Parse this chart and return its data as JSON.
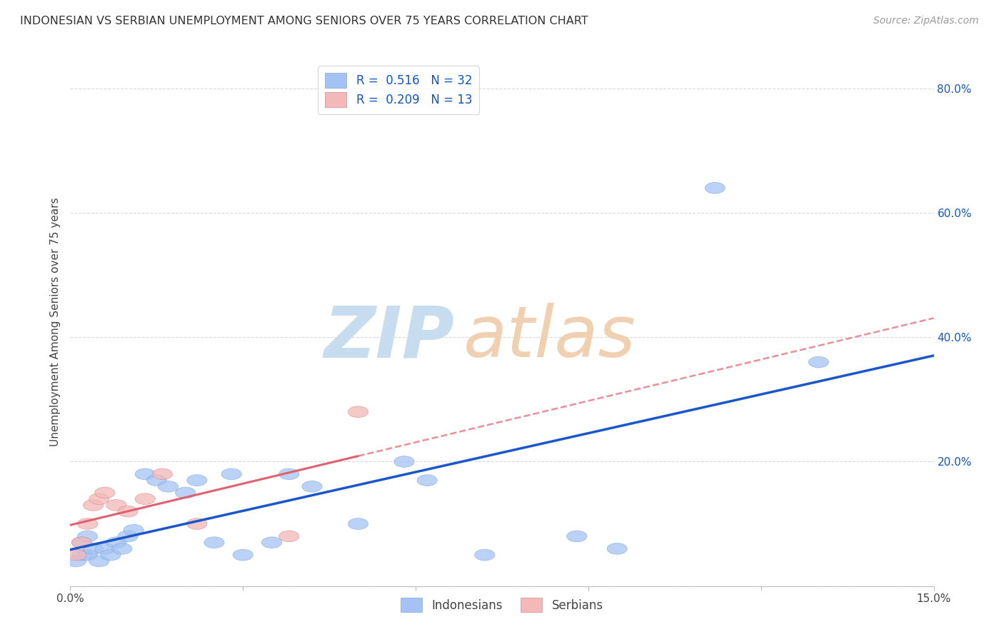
{
  "title": "INDONESIAN VS SERBIAN UNEMPLOYMENT AMONG SENIORS OVER 75 YEARS CORRELATION CHART",
  "source": "Source: ZipAtlas.com",
  "ylabel": "Unemployment Among Seniors over 75 years",
  "xlim": [
    0.0,
    0.15
  ],
  "ylim": [
    0.0,
    0.85
  ],
  "yticks": [
    0.0,
    0.2,
    0.4,
    0.6,
    0.8
  ],
  "ytick_labels": [
    "",
    "20.0%",
    "40.0%",
    "60.0%",
    "80.0%"
  ],
  "xticks": [
    0.0,
    0.03,
    0.06,
    0.09,
    0.12,
    0.15
  ],
  "xtick_labels": [
    "0.0%",
    "",
    "",
    "",
    "",
    "15.0%"
  ],
  "indonesian_R": 0.516,
  "indonesian_N": 32,
  "serbian_R": 0.209,
  "serbian_N": 13,
  "blue_scatter": "#a4c2f4",
  "pink_scatter": "#f4b8b8",
  "blue_line_color": "#1a56cc",
  "pink_line_color": "#e06070",
  "pink_dashed_color": "#e06070",
  "legend_text_color": "#1155cc",
  "indonesian_x": [
    0.001,
    0.002,
    0.002,
    0.003,
    0.003,
    0.004,
    0.005,
    0.006,
    0.007,
    0.008,
    0.009,
    0.01,
    0.011,
    0.013,
    0.015,
    0.017,
    0.02,
    0.022,
    0.025,
    0.028,
    0.03,
    0.035,
    0.038,
    0.042,
    0.05,
    0.058,
    0.062,
    0.072,
    0.088,
    0.095,
    0.112,
    0.13
  ],
  "indonesian_y": [
    0.04,
    0.05,
    0.07,
    0.05,
    0.08,
    0.06,
    0.04,
    0.06,
    0.05,
    0.07,
    0.06,
    0.08,
    0.09,
    0.18,
    0.17,
    0.16,
    0.15,
    0.17,
    0.07,
    0.18,
    0.05,
    0.07,
    0.18,
    0.16,
    0.1,
    0.2,
    0.17,
    0.05,
    0.08,
    0.06,
    0.64,
    0.36
  ],
  "serbian_x": [
    0.001,
    0.002,
    0.003,
    0.004,
    0.005,
    0.006,
    0.008,
    0.01,
    0.013,
    0.016,
    0.022,
    0.038,
    0.05
  ],
  "serbian_y": [
    0.05,
    0.07,
    0.1,
    0.13,
    0.14,
    0.15,
    0.13,
    0.12,
    0.14,
    0.18,
    0.1,
    0.08,
    0.28
  ],
  "background_color": "#ffffff",
  "grid_color": "#d0d0d0"
}
